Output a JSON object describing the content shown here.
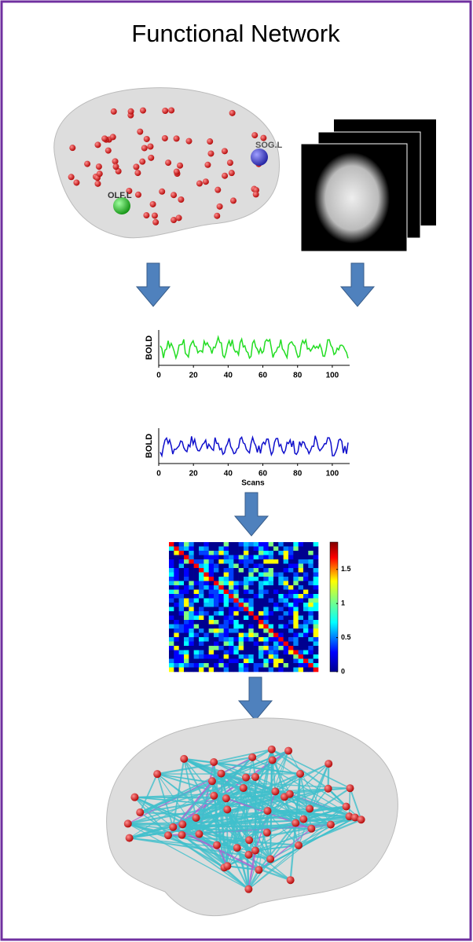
{
  "title": "Functional Network",
  "brain_labels": [
    "SOG.L",
    "OLF.L"
  ],
  "bold_plots": [
    {
      "ylabel": "BOLD",
      "xlim": [
        0,
        110
      ],
      "xticks": [
        0,
        20,
        40,
        60,
        80,
        100
      ]
    },
    {
      "ylabel": "BOLD",
      "xlim": [
        0,
        110
      ],
      "xticks": [
        0,
        20,
        40,
        60,
        80,
        100
      ],
      "xlabel": "Scans"
    }
  ],
  "colorbar": {
    "lim": [
      0,
      1.9
    ],
    "ticks": [
      0,
      0.5,
      1,
      1.5
    ]
  }
}
